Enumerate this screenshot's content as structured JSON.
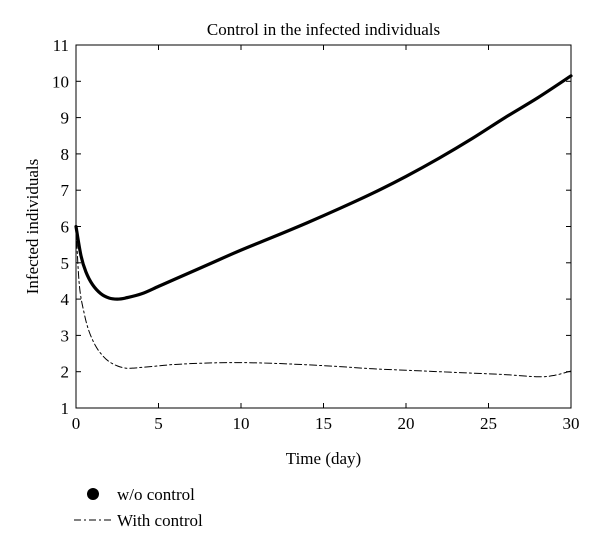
{
  "chart_data": {
    "type": "line",
    "title": "Control in  the infected individuals",
    "xlabel": "Time (day)",
    "ylabel": "Infected individuals",
    "xlim": [
      0,
      30
    ],
    "ylim": [
      1,
      11
    ],
    "xticks": [
      0,
      5,
      10,
      15,
      20,
      25,
      30
    ],
    "yticks": [
      1,
      2,
      3,
      4,
      5,
      6,
      7,
      8,
      9,
      10,
      11
    ],
    "grid": false,
    "legend_position": "bottom-left, below plot",
    "series": [
      {
        "name": "w/o control",
        "style": "solid-thick",
        "color": "#000000",
        "x": [
          0,
          0.3,
          0.6,
          1.0,
          1.5,
          2.0,
          2.5,
          3.0,
          4.0,
          5.0,
          6.0,
          8.0,
          10.0,
          12.0,
          14.0,
          16.0,
          18.0,
          20.0,
          22.0,
          24.0,
          26.0,
          28.0,
          30.0
        ],
        "y": [
          6.0,
          5.2,
          4.75,
          4.4,
          4.15,
          4.03,
          4.0,
          4.03,
          4.15,
          4.35,
          4.55,
          4.95,
          5.35,
          5.72,
          6.1,
          6.5,
          6.92,
          7.38,
          7.88,
          8.42,
          9.0,
          9.55,
          10.15
        ]
      },
      {
        "name": "With control",
        "style": "dash-dot",
        "color": "#000000",
        "x": [
          0,
          0.2,
          0.5,
          0.8,
          1.2,
          1.6,
          2.0,
          2.5,
          3.0,
          3.5,
          4.0,
          5.0,
          6.0,
          8.0,
          10.0,
          12.0,
          14.0,
          16.0,
          18.0,
          20.0,
          22.0,
          24.0,
          26.0,
          28.0,
          29.0,
          30.0
        ],
        "y": [
          6.0,
          4.4,
          3.6,
          3.1,
          2.7,
          2.45,
          2.28,
          2.16,
          2.1,
          2.1,
          2.12,
          2.16,
          2.2,
          2.24,
          2.25,
          2.23,
          2.19,
          2.14,
          2.08,
          2.04,
          2.0,
          1.96,
          1.92,
          1.86,
          1.9,
          2.02
        ]
      }
    ]
  }
}
